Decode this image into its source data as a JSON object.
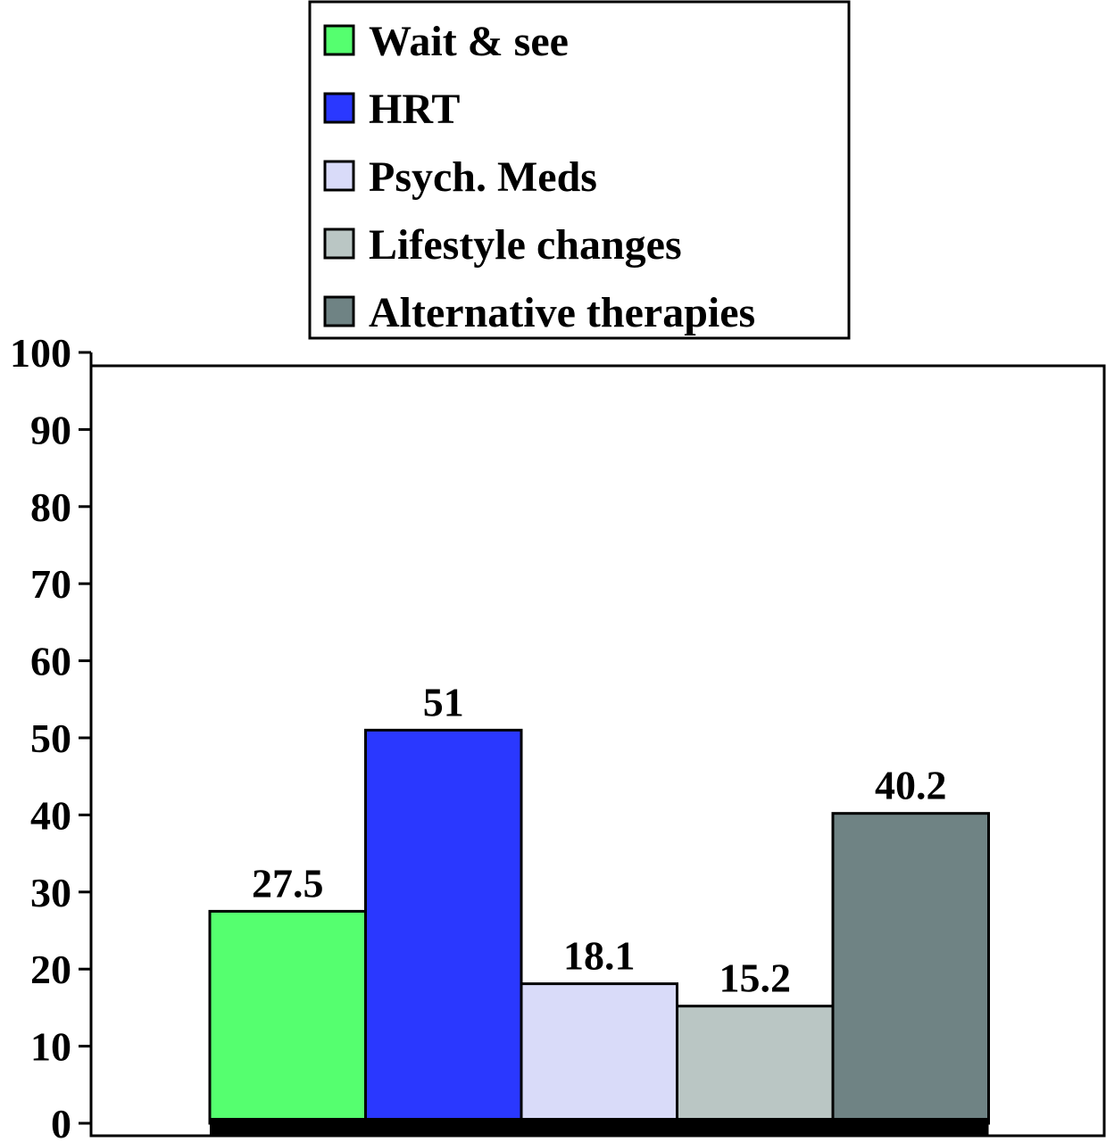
{
  "chart_data": {
    "type": "bar",
    "title": "",
    "xlabel": "",
    "ylabel": "",
    "ylim": [
      0,
      100
    ],
    "yticks": [
      0,
      10,
      20,
      30,
      40,
      50,
      60,
      70,
      80,
      90,
      100
    ],
    "grid": false,
    "legend_position": "top-center",
    "series": [
      {
        "name": "Wait & see",
        "value": 27.5,
        "label": "27.5",
        "color": "#55ff6f"
      },
      {
        "name": "HRT",
        "value": 51,
        "label": "51",
        "color": "#2a38ff"
      },
      {
        "name": "Psych. Meds",
        "value": 18.1,
        "label": "18.1",
        "color": "#d9dbf9"
      },
      {
        "name": "Lifestyle changes",
        "value": 15.2,
        "label": "15.2",
        "color": "#bac6c4"
      },
      {
        "name": "Alternative therapies",
        "value": 40.2,
        "label": "40.2",
        "color": "#6f8384"
      }
    ]
  }
}
